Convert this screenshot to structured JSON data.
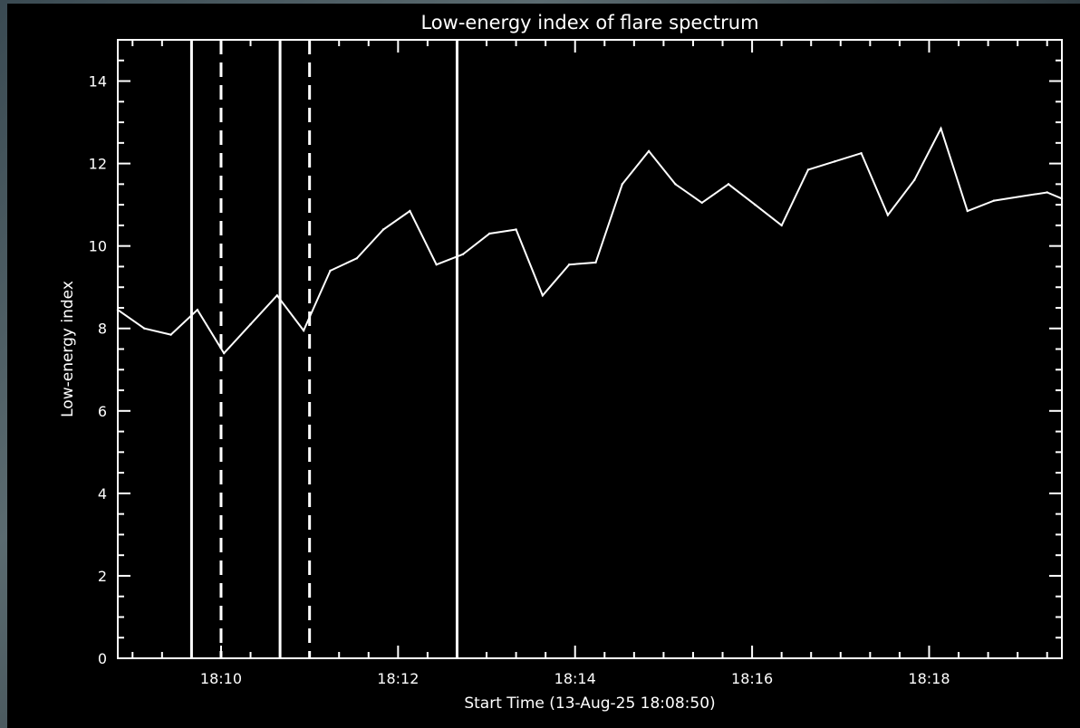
{
  "chart_data": {
    "type": "line",
    "title": "Low-energy index of flare spectrum",
    "xlabel": "Start Time (13-Aug-25 18:08:50)",
    "ylabel": "Low-energy index",
    "xlim": [
      "18:08:50",
      "18:19:30"
    ],
    "ylim": [
      0,
      15
    ],
    "x_tick_labels": [
      "18:10",
      "18:12",
      "18:14",
      "18:16",
      "18:18"
    ],
    "y_tick_labels": [
      "0",
      "2",
      "4",
      "6",
      "8",
      "10",
      "12",
      "14"
    ],
    "grid": false,
    "colors": {
      "background": "#000000",
      "line": "#ffffff",
      "axes": "#ffffff"
    },
    "series": [
      {
        "x": [
          "18:08:50",
          "18:09:08",
          "18:09:26",
          "18:09:44",
          "18:10:02",
          "18:10:20",
          "18:10:38",
          "18:10:56",
          "18:11:14",
          "18:11:32",
          "18:11:50",
          "18:12:08",
          "18:12:26",
          "18:12:44",
          "18:13:02",
          "18:13:20",
          "18:13:38",
          "18:13:56",
          "18:14:14",
          "18:14:32",
          "18:14:50",
          "18:15:08",
          "18:15:26",
          "18:15:44",
          "18:16:02",
          "18:16:20",
          "18:16:38",
          "18:16:56",
          "18:17:14",
          "18:17:32",
          "18:17:50",
          "18:18:08",
          "18:18:26",
          "18:18:44",
          "18:19:02",
          "18:19:20",
          "18:19:30"
        ],
        "values": [
          8.45,
          8.0,
          7.85,
          8.45,
          7.4,
          8.1,
          8.8,
          7.95,
          9.4,
          9.7,
          10.4,
          10.85,
          9.55,
          9.8,
          10.3,
          10.4,
          8.8,
          9.55,
          9.6,
          11.5,
          12.3,
          11.5,
          11.05,
          11.5,
          11.0,
          10.5,
          11.85,
          12.05,
          12.25,
          10.75,
          11.6,
          12.85,
          10.85,
          11.1,
          11.2,
          11.3,
          11.15
        ]
      }
    ],
    "vertical_markers": [
      {
        "x": "18:09:40",
        "style": "solid"
      },
      {
        "x": "18:10:00",
        "style": "dashed"
      },
      {
        "x": "18:10:40",
        "style": "solid"
      },
      {
        "x": "18:11:00",
        "style": "dashed"
      },
      {
        "x": "18:12:40",
        "style": "solid"
      }
    ]
  }
}
